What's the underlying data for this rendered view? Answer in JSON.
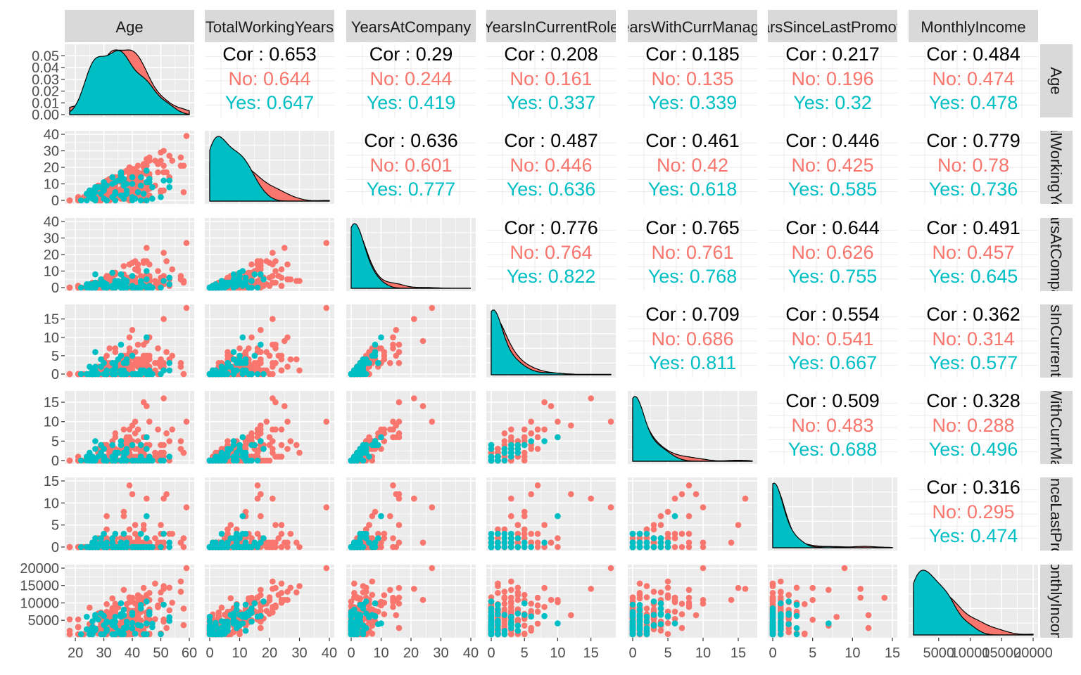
{
  "chart_data": {
    "type": "scatter",
    "title": "",
    "description_vars": [
      "Age",
      "TotalWorkingYears",
      "YearsAtCompany",
      "YearsInCurrentRole",
      "YearsWithCurrManager",
      "YearsSinceLastPromotion",
      "MonthlyIncome"
    ],
    "top_strip_labels": [
      "Age",
      "TotalWorkingYears",
      "YearsAtCompany",
      "YearsInCurrentRole",
      "YearsWithCurrManager",
      "YearsSinceLastPromotion",
      "MonthlyIncome"
    ],
    "right_strip_labels": [
      "Age",
      "TotalWorkingYears",
      "YearsAtCompany",
      "YearsInCurrentRole",
      "YearsWithCurrManager",
      "YearsSinceLastPromotion",
      "MonthlyIncome"
    ],
    "series": [
      {
        "name": "No",
        "color": "#F8766D"
      },
      {
        "name": "Yes",
        "color": "#00BFC4"
      }
    ],
    "ranges": [
      [
        18,
        60
      ],
      [
        0,
        40
      ],
      [
        0,
        40
      ],
      [
        0,
        18
      ],
      [
        0,
        17
      ],
      [
        0,
        15
      ],
      [
        1000,
        20000
      ]
    ],
    "x_ticks": [
      [
        "20",
        "30",
        "40",
        "50",
        "60"
      ],
      [
        "0",
        "10",
        "20",
        "30",
        "40"
      ],
      [
        "0",
        "10",
        "20",
        "30",
        "40"
      ],
      [
        "0",
        "5",
        "10",
        "15"
      ],
      [
        "0",
        "5",
        "10",
        "15"
      ],
      [
        "0",
        "5",
        "10",
        "15"
      ],
      [
        "5000",
        "10000",
        "15000",
        "20000"
      ]
    ],
    "x_tick_values": [
      [
        20,
        30,
        40,
        50,
        60
      ],
      [
        0,
        10,
        20,
        30,
        40
      ],
      [
        0,
        10,
        20,
        30,
        40
      ],
      [
        0,
        5,
        10,
        15
      ],
      [
        0,
        5,
        10,
        15
      ],
      [
        0,
        5,
        10,
        15
      ],
      [
        5000,
        10000,
        15000,
        20000
      ]
    ],
    "y_ticks": [
      [
        "0.00",
        "0.01",
        "0.02",
        "0.03",
        "0.04",
        "0.05"
      ],
      [
        "0",
        "10",
        "20",
        "30",
        "40"
      ],
      [
        "0",
        "10",
        "20",
        "30",
        "40"
      ],
      [
        "0",
        "5",
        "10",
        "15"
      ],
      [
        "0",
        "5",
        "10",
        "15"
      ],
      [
        "0",
        "5",
        "10",
        "15"
      ],
      [
        "5000",
        "10000",
        "15000",
        "20000"
      ]
    ],
    "y_tick_values": [
      [
        0,
        0.01,
        0.02,
        0.03,
        0.04,
        0.05
      ],
      [
        0,
        10,
        20,
        30,
        40
      ],
      [
        0,
        10,
        20,
        30,
        40
      ],
      [
        0,
        5,
        10,
        15
      ],
      [
        0,
        5,
        10,
        15
      ],
      [
        0,
        5,
        10,
        15
      ],
      [
        5000,
        10000,
        15000,
        20000
      ]
    ],
    "age_density_ylim": [
      0,
      0.055
    ],
    "correlations": [
      {
        "row": 0,
        "col": 1,
        "cor": "Cor : 0.653",
        "no": "No: 0.644",
        "yes": "Yes: 0.647"
      },
      {
        "row": 0,
        "col": 2,
        "cor": "Cor : 0.29",
        "no": "No: 0.244",
        "yes": "Yes: 0.419"
      },
      {
        "row": 0,
        "col": 3,
        "cor": "Cor : 0.208",
        "no": "No: 0.161",
        "yes": "Yes: 0.337"
      },
      {
        "row": 0,
        "col": 4,
        "cor": "Cor : 0.185",
        "no": "No: 0.135",
        "yes": "Yes: 0.339"
      },
      {
        "row": 0,
        "col": 5,
        "cor": "Cor : 0.217",
        "no": "No: 0.196",
        "yes": "Yes: 0.32"
      },
      {
        "row": 0,
        "col": 6,
        "cor": "Cor : 0.484",
        "no": "No: 0.474",
        "yes": "Yes: 0.478"
      },
      {
        "row": 1,
        "col": 2,
        "cor": "Cor : 0.636",
        "no": "No: 0.601",
        "yes": "Yes: 0.777"
      },
      {
        "row": 1,
        "col": 3,
        "cor": "Cor : 0.487",
        "no": "No: 0.446",
        "yes": "Yes: 0.636"
      },
      {
        "row": 1,
        "col": 4,
        "cor": "Cor : 0.461",
        "no": "No: 0.42",
        "yes": "Yes: 0.618"
      },
      {
        "row": 1,
        "col": 5,
        "cor": "Cor : 0.446",
        "no": "No: 0.425",
        "yes": "Yes: 0.585"
      },
      {
        "row": 1,
        "col": 6,
        "cor": "Cor : 0.779",
        "no": "No: 0.78",
        "yes": "Yes: 0.736"
      },
      {
        "row": 2,
        "col": 3,
        "cor": "Cor : 0.776",
        "no": "No: 0.764",
        "yes": "Yes: 0.822"
      },
      {
        "row": 2,
        "col": 4,
        "cor": "Cor : 0.765",
        "no": "No: 0.761",
        "yes": "Yes: 0.768"
      },
      {
        "row": 2,
        "col": 5,
        "cor": "Cor : 0.644",
        "no": "No: 0.626",
        "yes": "Yes: 0.755"
      },
      {
        "row": 2,
        "col": 6,
        "cor": "Cor : 0.491",
        "no": "No: 0.457",
        "yes": "Yes: 0.645"
      },
      {
        "row": 3,
        "col": 4,
        "cor": "Cor : 0.709",
        "no": "No: 0.686",
        "yes": "Yes: 0.811"
      },
      {
        "row": 3,
        "col": 5,
        "cor": "Cor : 0.554",
        "no": "No: 0.541",
        "yes": "Yes: 0.667"
      },
      {
        "row": 3,
        "col": 6,
        "cor": "Cor : 0.362",
        "no": "No: 0.314",
        "yes": "Yes: 0.577"
      },
      {
        "row": 4,
        "col": 5,
        "cor": "Cor : 0.509",
        "no": "No: 0.483",
        "yes": "Yes: 0.688"
      },
      {
        "row": 4,
        "col": 6,
        "cor": "Cor : 0.328",
        "no": "No: 0.288",
        "yes": "Yes: 0.496"
      },
      {
        "row": 5,
        "col": 6,
        "cor": "Cor : 0.316",
        "no": "No: 0.295",
        "yes": "Yes: 0.474"
      }
    ],
    "grid": true,
    "legend": "none"
  }
}
